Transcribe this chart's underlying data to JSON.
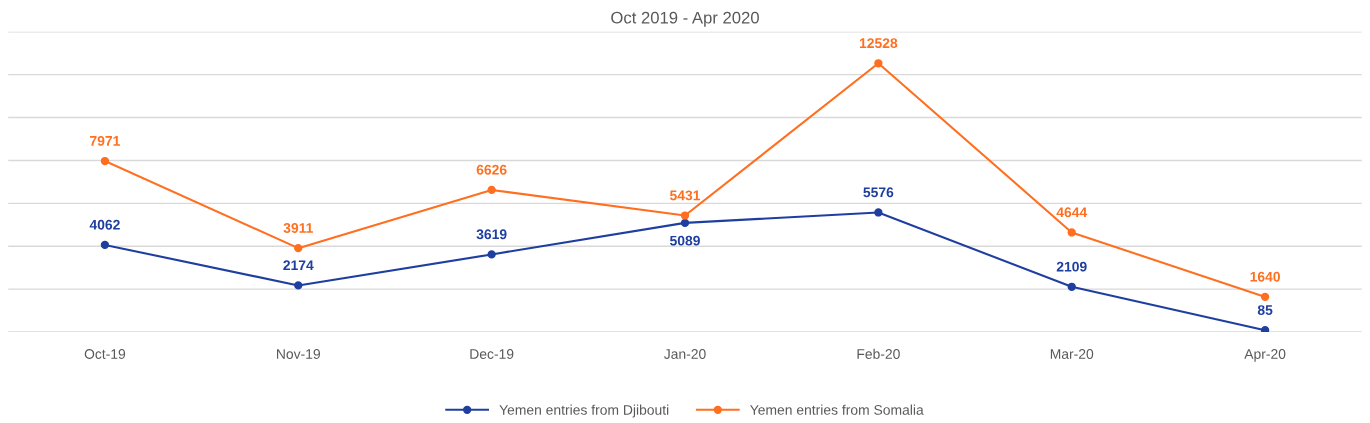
{
  "chart_data": {
    "type": "line",
    "title": "Oct 2019 - Apr 2020",
    "categories": [
      "Oct-19",
      "Nov-19",
      "Dec-19",
      "Jan-20",
      "Feb-20",
      "Mar-20",
      "Apr-20"
    ],
    "series": [
      {
        "name": "Yemen entries from Djibouti",
        "color": "#1f3fa0",
        "values": [
          4062,
          2174,
          3619,
          5089,
          5576,
          2109,
          85
        ]
      },
      {
        "name": "Yemen entries from Somalia",
        "color": "#ff6f1f",
        "values": [
          7971,
          3911,
          6626,
          5431,
          12528,
          4644,
          1640
        ]
      }
    ],
    "ylim": [
      0,
      14000
    ],
    "yticks": [
      {
        "value": 0,
        "label": null
      },
      {
        "value": 2000,
        "label": null
      },
      {
        "value": 4000,
        "label": null
      },
      {
        "value": 6000,
        "label": null
      },
      {
        "value": 8000,
        "label": null
      },
      {
        "value": 10000,
        "label": null
      },
      {
        "value": 12000,
        "label": null
      },
      {
        "value": 14000,
        "label": null
      }
    ],
    "tick_labels": "x",
    "grid": "y",
    "legend": "bottom",
    "marker": "circle",
    "line_style": "solid",
    "data_labels": true
  }
}
